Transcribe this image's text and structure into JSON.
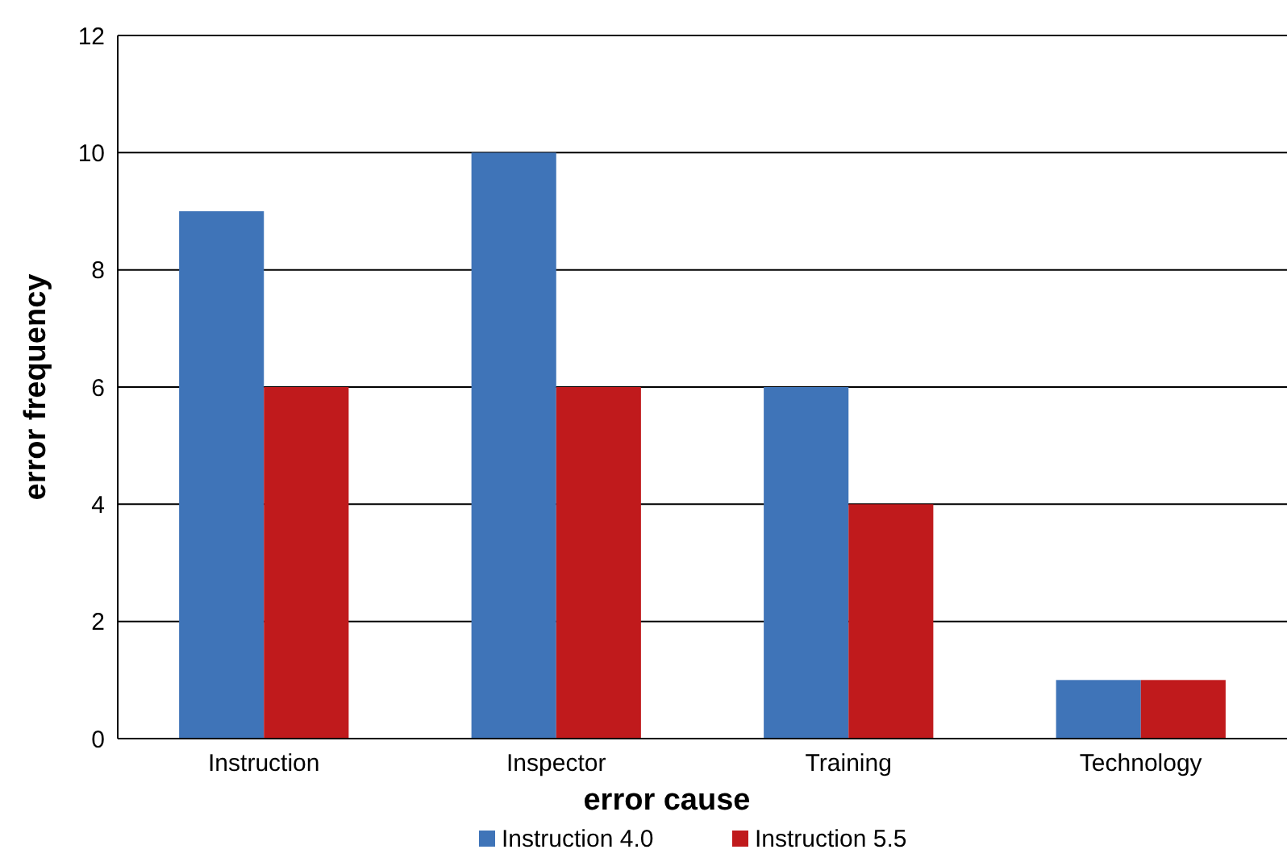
{
  "chart_data": {
    "type": "bar",
    "xlabel": "error cause",
    "ylabel": "error frequency",
    "categories": [
      "Instruction",
      "Inspector",
      "Training",
      "Technology"
    ],
    "series": [
      {
        "name": "Instruction 4.0",
        "color": "#3f74b8",
        "values": [
          9,
          10,
          6,
          1
        ]
      },
      {
        "name": "Instruction 5.5",
        "color": "#c01a1c",
        "values": [
          6,
          6,
          4,
          1
        ]
      }
    ],
    "ylim": [
      0,
      12
    ],
    "yticks": [
      0,
      2,
      4,
      6,
      8,
      10,
      12
    ],
    "grid": "y",
    "legend": "bottom"
  }
}
